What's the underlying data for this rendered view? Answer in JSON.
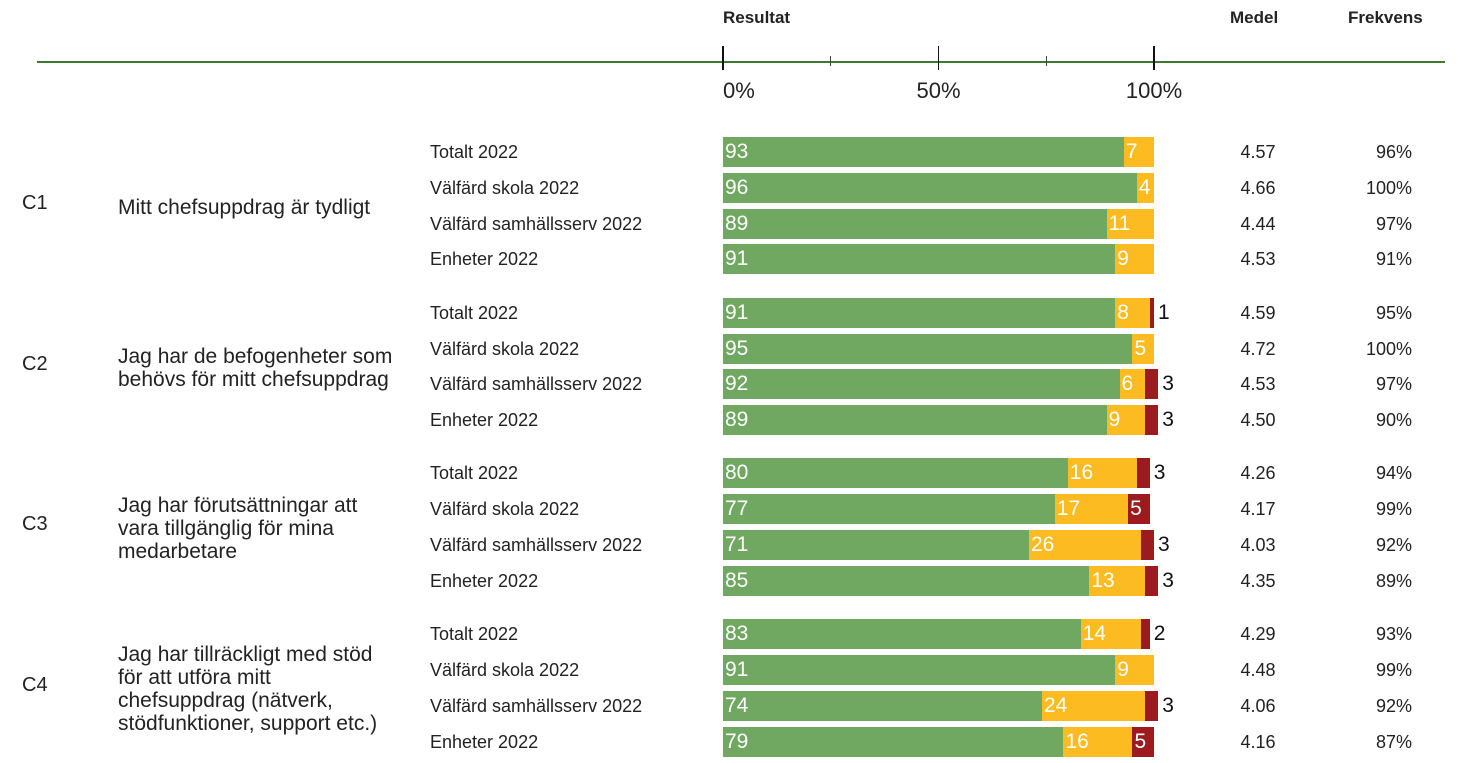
{
  "chart_data": {
    "type": "bar",
    "orientation": "horizontal",
    "stacked": true,
    "headers": {
      "result": "Resultat",
      "mean": "Medel",
      "frequency": "Frekvens"
    },
    "xlim": [
      0,
      100
    ],
    "xticks": [
      {
        "value": 0,
        "label": "0%"
      },
      {
        "value": 50,
        "label": "50%"
      },
      {
        "value": 100,
        "label": "100%"
      }
    ],
    "minor_xticks": [
      25,
      75
    ],
    "colors": [
      "#70a862",
      "#fbbb21",
      "#9b1b1e"
    ],
    "groups": [
      {
        "code": "C1",
        "question": "Mitt chefsuppdrag är tydligt",
        "categories": [
          "Totalt 2022",
          "Välfärd skola 2022",
          "Välfärd samhällsserv 2022",
          "Enheter 2022"
        ],
        "series": [
          {
            "values": [
              93,
              96,
              89,
              91
            ]
          },
          {
            "values": [
              7,
              4,
              11,
              9
            ]
          },
          {
            "values": [
              null,
              null,
              null,
              null
            ]
          }
        ],
        "mean": [
          "4.57",
          "4.66",
          "4.44",
          "4.53"
        ],
        "frequency": [
          "96%",
          "100%",
          "97%",
          "91%"
        ]
      },
      {
        "code": "C2",
        "question": "Jag har de befogenheter som behövs för mitt chefsuppdrag",
        "categories": [
          "Totalt 2022",
          "Välfärd skola 2022",
          "Välfärd samhällsserv 2022",
          "Enheter 2022"
        ],
        "series": [
          {
            "values": [
              91,
              95,
              92,
              89
            ]
          },
          {
            "values": [
              8,
              5,
              6,
              9
            ]
          },
          {
            "values": [
              1,
              null,
              3,
              3
            ]
          }
        ],
        "mean": [
          "4.59",
          "4.72",
          "4.53",
          "4.50"
        ],
        "frequency": [
          "95%",
          "100%",
          "97%",
          "90%"
        ]
      },
      {
        "code": "C3",
        "question": "Jag har förutsättningar att vara tillgänglig för mina medarbetare",
        "categories": [
          "Totalt 2022",
          "Välfärd skola 2022",
          "Välfärd samhällsserv 2022",
          "Enheter 2022"
        ],
        "series": [
          {
            "values": [
              80,
              77,
              71,
              85
            ]
          },
          {
            "values": [
              16,
              17,
              26,
              13
            ]
          },
          {
            "values": [
              3,
              5,
              3,
              3
            ]
          }
        ],
        "mean": [
          "4.26",
          "4.17",
          "4.03",
          "4.35"
        ],
        "frequency": [
          "94%",
          "99%",
          "92%",
          "89%"
        ]
      },
      {
        "code": "C4",
        "question": "Jag har tillräckligt med stöd för att utföra mitt chefsuppdrag (nätverk, stödfunktioner, support etc.)",
        "categories": [
          "Totalt 2022",
          "Välfärd skola 2022",
          "Välfärd samhällsserv 2022",
          "Enheter 2022"
        ],
        "series": [
          {
            "values": [
              83,
              91,
              74,
              79
            ]
          },
          {
            "values": [
              14,
              9,
              24,
              16
            ]
          },
          {
            "values": [
              2,
              null,
              3,
              5
            ]
          }
        ],
        "mean": [
          "4.29",
          "4.48",
          "4.06",
          "4.16"
        ],
        "frequency": [
          "93%",
          "99%",
          "92%",
          "87%"
        ]
      }
    ]
  }
}
